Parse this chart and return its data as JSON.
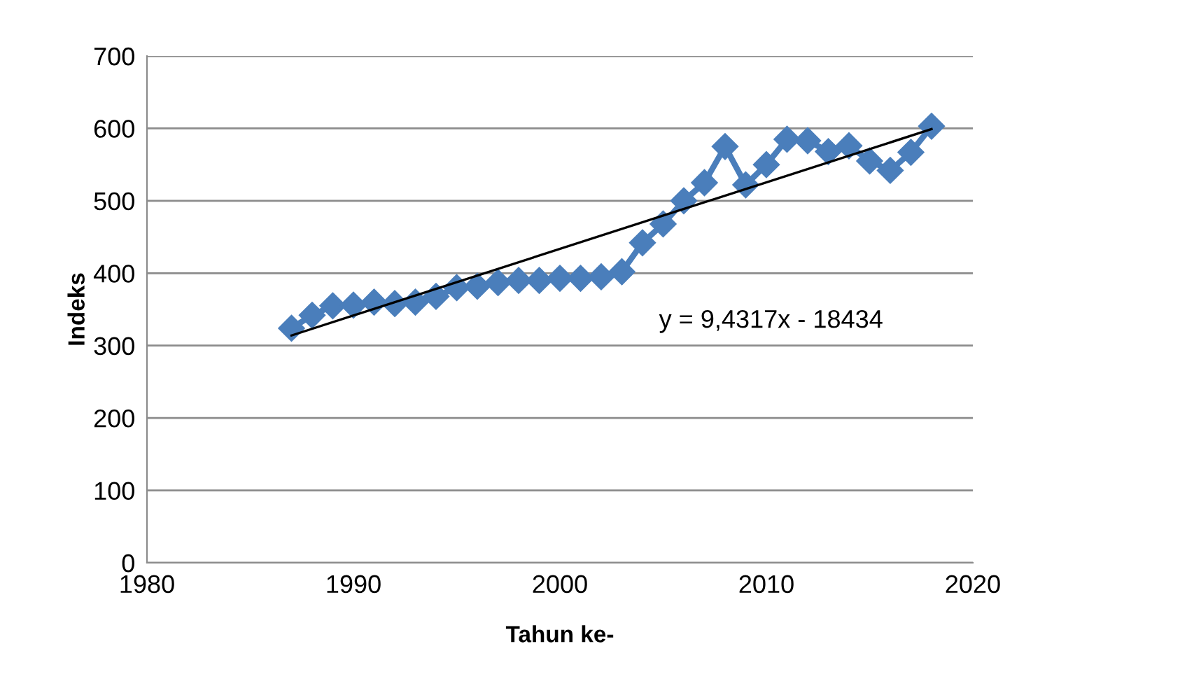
{
  "chart_data": {
    "type": "line",
    "xlabel": "Tahun ke-",
    "ylabel": "Indeks",
    "xlim": [
      1980,
      2020
    ],
    "xticks": [
      1980,
      1990,
      2000,
      2010,
      2020
    ],
    "ylim": [
      0,
      700
    ],
    "yticks": [
      0,
      100,
      200,
      300,
      400,
      500,
      600,
      700
    ],
    "grid": "y",
    "legend": false,
    "series": [
      {
        "marker": "diamond",
        "color": "#4a7ebb",
        "x": [
          1987,
          1988,
          1989,
          1990,
          1991,
          1992,
          1993,
          1994,
          1995,
          1996,
          1997,
          1998,
          1999,
          2000,
          2001,
          2002,
          2003,
          2004,
          2005,
          2006,
          2007,
          2008,
          2009,
          2010,
          2011,
          2012,
          2013,
          2014,
          2015,
          2016,
          2017,
          2018
        ],
        "values": [
          324,
          342,
          355,
          356,
          360,
          358,
          360,
          368,
          380,
          382,
          387,
          390,
          390,
          393,
          393,
          395,
          402,
          442,
          468,
          500,
          525,
          575,
          522,
          550,
          585,
          583,
          568,
          576,
          555,
          542,
          567,
          603
        ]
      },
      {
        "marker": "none",
        "color": "#000000",
        "x": [
          1987,
          2018
        ],
        "values": [
          314,
          599
        ]
      }
    ],
    "annotations": [
      "y = 9,4317x - 18434"
    ]
  }
}
